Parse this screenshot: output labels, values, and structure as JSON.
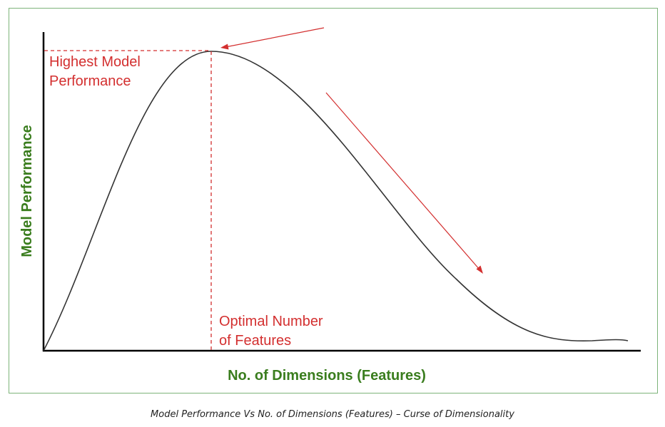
{
  "chart_data": {
    "type": "line",
    "title": "",
    "xlabel": "No. of Dimensions (Features)",
    "ylabel": "Model Performance",
    "xticks": false,
    "yticks": false,
    "grid": false,
    "series": [
      {
        "x": [
          0,
          1,
          2,
          3,
          4,
          5,
          6,
          7,
          8,
          9,
          10
        ],
        "y": [
          0,
          0.55,
          0.86,
          1.0,
          0.9,
          0.68,
          0.44,
          0.2,
          0.06,
          0.02,
          0.03
        ]
      }
    ],
    "annotations": {
      "peak_label_line1": "Highest Model",
      "peak_label_line2": "Performance",
      "optimal_label_line1": "Optimal Number",
      "optimal_label_line2": "of Features"
    }
  },
  "colors": {
    "axis_label": "#3a7d1e",
    "annotation": "#d32f2f",
    "curve": "#333333",
    "frame": "#7db37a"
  },
  "caption": "Model Performance Vs No. of Dimensions (Features) – Curse of Dimensionality"
}
